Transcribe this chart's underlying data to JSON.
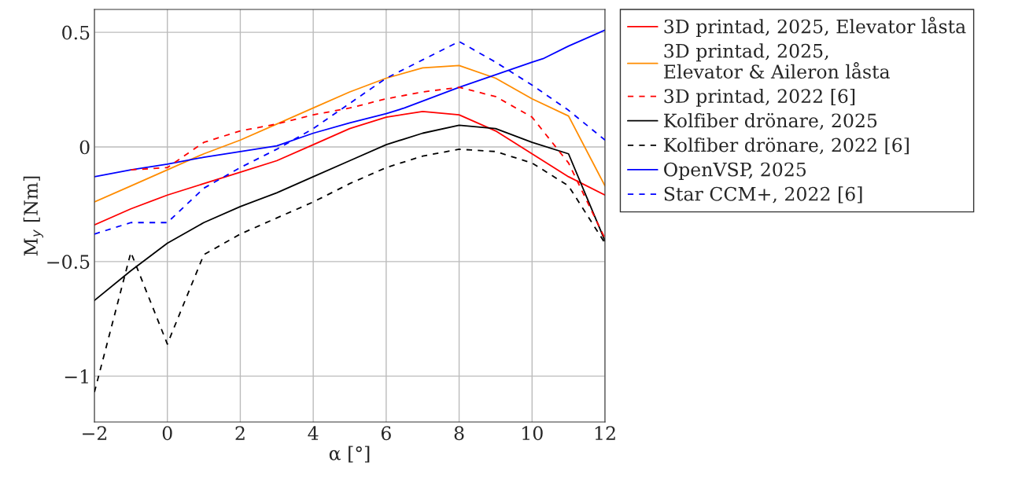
{
  "chart_data": {
    "type": "line",
    "xlabel": "α [°]",
    "ylabel": "M$_{y}$ [Nm]",
    "xlim": [
      -2,
      12
    ],
    "ylim": [
      -1.2,
      0.6
    ],
    "xticks": [
      {
        "value": -2,
        "label": "−2"
      },
      0,
      2,
      4,
      6,
      8,
      10,
      12
    ],
    "yticks": [
      {
        "value": -1,
        "label": "−1"
      },
      {
        "value": -0.5,
        "label": "−0.5"
      },
      0,
      0.5
    ],
    "grid": true,
    "legend": "right",
    "marker": "none",
    "series": [
      {
        "name": "3D printad, 2025, Elevator låsta",
        "color": "#ff0000",
        "line_style": "solid",
        "x": [
          -2,
          -1,
          0,
          1,
          2,
          3,
          4,
          5,
          6,
          7,
          8,
          9,
          10,
          11,
          12
        ],
        "values": [
          -0.34,
          -0.27,
          -0.21,
          -0.16,
          -0.11,
          -0.06,
          0.01,
          0.08,
          0.13,
          0.155,
          0.14,
          0.07,
          -0.03,
          -0.13,
          -0.21
        ]
      },
      {
        "name": "3D printad, 2025,\nElevator & Aileron låsta",
        "color": "#ff8c00",
        "line_style": "solid",
        "x": [
          -2,
          -1,
          0,
          1,
          2,
          3,
          4,
          5,
          6,
          7,
          8,
          9,
          10,
          11,
          12
        ],
        "values": [
          -0.24,
          -0.17,
          -0.1,
          -0.03,
          0.03,
          0.1,
          0.17,
          0.24,
          0.3,
          0.345,
          0.355,
          0.3,
          0.21,
          0.135,
          -0.17
        ]
      },
      {
        "name": "3D printad, 2022 [6]",
        "color": "#ff0000",
        "line_style": "dashed",
        "x": [
          -1,
          0,
          1,
          2,
          3,
          4,
          5,
          6,
          7,
          8,
          9,
          10,
          11,
          12
        ],
        "values": [
          -0.1,
          -0.09,
          0.02,
          0.07,
          0.1,
          0.14,
          0.17,
          0.21,
          0.24,
          0.26,
          0.22,
          0.13,
          -0.07,
          -0.4
        ]
      },
      {
        "name": "Kolfiber drönare, 2025",
        "color": "#000000",
        "line_style": "solid",
        "x": [
          -2,
          -1,
          0,
          1,
          2,
          3,
          4,
          5,
          6,
          7,
          8,
          9,
          10,
          11,
          12
        ],
        "values": [
          -0.67,
          -0.54,
          -0.42,
          -0.33,
          -0.26,
          -0.2,
          -0.13,
          -0.06,
          0.01,
          0.06,
          0.095,
          0.08,
          0.02,
          -0.03,
          -0.41
        ]
      },
      {
        "name": "Kolfiber drönare, 2022 [6]",
        "color": "#000000",
        "line_style": "dashed",
        "x": [
          -2,
          -1,
          0,
          1,
          2,
          3,
          4,
          5,
          6,
          7,
          8,
          9,
          10,
          11,
          12
        ],
        "values": [
          -1.07,
          -0.46,
          -0.86,
          -0.47,
          -0.38,
          -0.31,
          -0.24,
          -0.16,
          -0.09,
          -0.04,
          -0.01,
          -0.02,
          -0.07,
          -0.17,
          -0.42
        ]
      },
      {
        "name": "OpenVSP, 2025",
        "color": "#0000ff",
        "line_style": "solid",
        "x": [
          -2,
          -1,
          0,
          1,
          2,
          3,
          4,
          5,
          6,
          6.5,
          7,
          8,
          9,
          10,
          10.3,
          11,
          12
        ],
        "values": [
          -0.13,
          -0.1,
          -0.075,
          -0.045,
          -0.02,
          0.005,
          0.06,
          0.105,
          0.145,
          0.17,
          0.2,
          0.26,
          0.315,
          0.37,
          0.385,
          0.44,
          0.51
        ]
      },
      {
        "name": "Star CCM+, 2022 [6]",
        "color": "#0000ff",
        "line_style": "dashed",
        "x": [
          -2,
          -1,
          0,
          1,
          2,
          3,
          4,
          5,
          6,
          7,
          8,
          9,
          10,
          11,
          12
        ],
        "values": [
          -0.38,
          -0.33,
          -0.33,
          -0.18,
          -0.09,
          -0.01,
          0.08,
          0.19,
          0.3,
          0.38,
          0.46,
          0.37,
          0.27,
          0.16,
          0.03
        ]
      }
    ]
  }
}
